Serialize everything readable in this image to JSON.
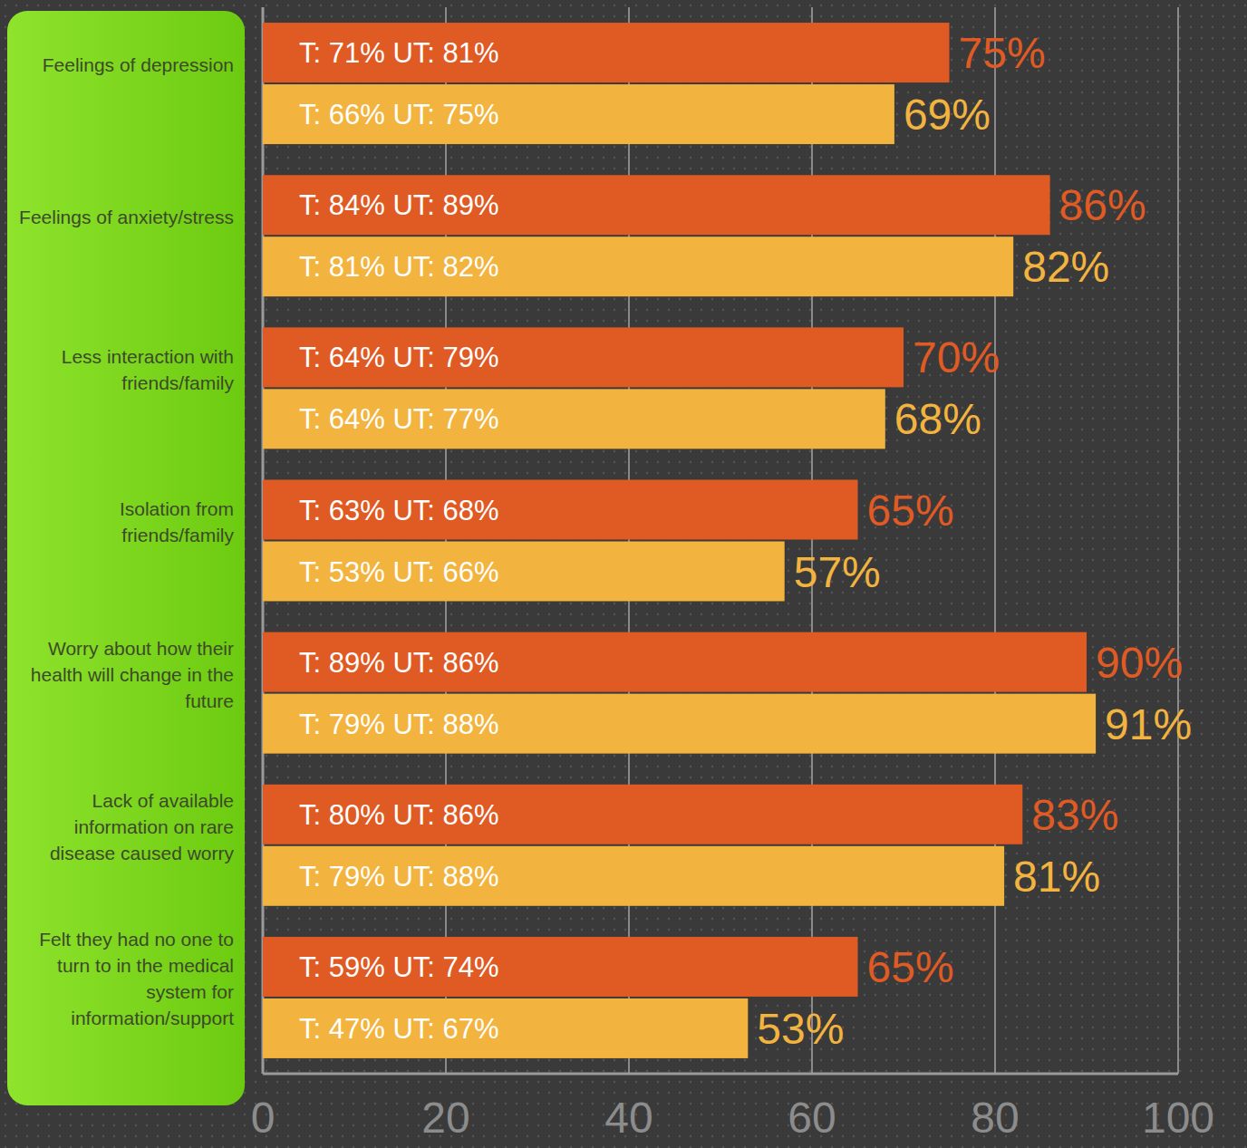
{
  "chart_data": {
    "type": "bar",
    "orientation": "horizontal",
    "categories": [
      "Feelings of depression",
      "Feelings of anxiety/stress",
      "Less interaction with friends/family",
      "Isolation from friends/family",
      "Worry about how their health will change in the future",
      "Lack of available information on rare disease caused worry",
      "Felt they had no one to turn to in the medical system for information/support"
    ],
    "series": [
      {
        "color": "#e05a24",
        "values": [
          75,
          86,
          70,
          65,
          90,
          83,
          65
        ],
        "value_labels": [
          "75%",
          "86%",
          "70%",
          "65%",
          "90%",
          "83%",
          "65%"
        ],
        "annotations": [
          "T: 71% UT: 81%",
          "T: 84% UT: 89%",
          "T: 64% UT: 79%",
          "T: 63% UT: 68%",
          "T: 89% UT: 86%",
          "T: 80% UT: 86%",
          "T: 59% UT: 74%"
        ]
      },
      {
        "color": "#f2b43e",
        "values": [
          69,
          82,
          68,
          57,
          91,
          81,
          53
        ],
        "value_labels": [
          "69%",
          "82%",
          "68%",
          "57%",
          "91%",
          "81%",
          "53%"
        ],
        "annotations": [
          "T: 66% UT: 75%",
          "T: 81% UT: 82%",
          "T: 64% UT: 77%",
          "T: 53% UT: 66%",
          "T: 79% UT: 88%",
          "T: 79% UT: 88%",
          "T: 47% UT: 67%"
        ]
      }
    ],
    "xlim": [
      0,
      100
    ],
    "xticks": [
      0,
      20,
      40,
      60,
      80,
      100
    ],
    "grid": true,
    "data_labels": true
  }
}
